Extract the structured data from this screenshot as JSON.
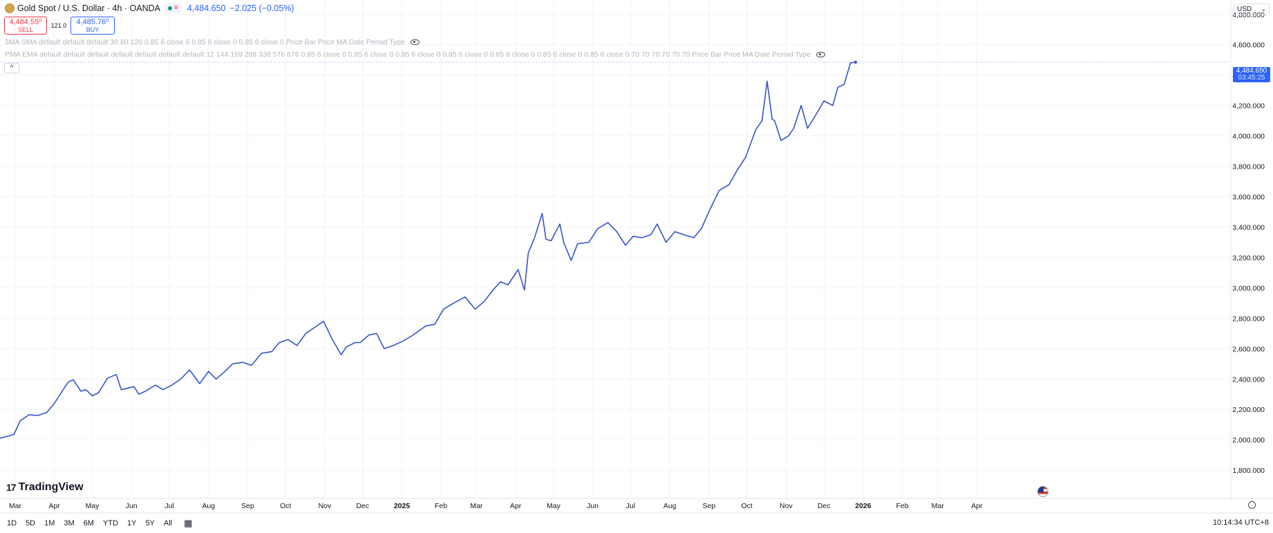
{
  "header": {
    "symbol": "Gold Spot / U.S. Dollar · 4h · OANDA",
    "last_price": "4,484.650",
    "change": "−2.025 (−0.05%)",
    "sell_price": "4,484.55⁰",
    "sell_label": "SELL",
    "spread": "121.0",
    "buy_price": "4,485.76⁰",
    "buy_label": "BUY",
    "indicator1": "3MA SMA default default default 30 60 120 0.85 6 close 0 0.85 6 close 0 0.85 6 close 0 Price Bar Price MA Date Peroid Type",
    "indicator2": "PMA EMA default default default default default default default 12 144 169 288 338 576 676 0.85 6 close 0 0.85 6 close 0 0.85 6 close 0 0.85 6 close 0 0.85 6 close 0 0.85 6 close 0 0.85 6 close 0 70 70 70 70 70 70 Price Bar Price MA Date Peroid Type",
    "collapse_glyph": "^",
    "currency": "USD",
    "currency_chevron": "⌄"
  },
  "price_tag": {
    "price": "4,484.650",
    "countdown": "03:45:25"
  },
  "logo": {
    "mark": "17",
    "text": "TradingView"
  },
  "bottom": {
    "ranges": [
      "1D",
      "5D",
      "1M",
      "3M",
      "6M",
      "YTD",
      "1Y",
      "5Y",
      "All"
    ],
    "time": "10:14:34 UTC+8"
  },
  "icons": {
    "calendar": "calendar-icon",
    "eye": "eye-icon",
    "flag": "us-flag-icon",
    "gear": "gear-icon"
  },
  "colors": {
    "line": "#3652c7",
    "accent": "#2962ff",
    "sell": "#f23645",
    "grid": "#f0f3fa"
  },
  "chart_data": {
    "type": "line",
    "title": "Gold Spot / U.S. Dollar · 4h · OANDA",
    "xlabel": "",
    "ylabel": "",
    "ylim": [
      1700,
      4900
    ],
    "xlim": [
      "2024-02-18",
      "2026-04-28"
    ],
    "grid": true,
    "y_ticks": [
      1800,
      2000,
      2200,
      2400,
      2600,
      2800,
      3000,
      3200,
      3400,
      3600,
      3800,
      4000,
      4200,
      4400,
      4600,
      4800
    ],
    "y_tick_labels": [
      "1,800.000",
      "2,000.000",
      "2,200.000",
      "2,400.000",
      "2,600.000",
      "2,800.000",
      "3,000.000",
      "3,200.000",
      "3,400.000",
      "3,600.000",
      "3,800.000",
      "4,000.000",
      "4,200.000",
      "4,400.000",
      "4,600.000",
      "4,800.000"
    ],
    "x_ticks": [
      {
        "label": "Mar",
        "date": "2024-03-01"
      },
      {
        "label": "Apr",
        "date": "2024-04-01"
      },
      {
        "label": "May",
        "date": "2024-05-01"
      },
      {
        "label": "Jun",
        "date": "2024-06-01"
      },
      {
        "label": "Jul",
        "date": "2024-07-01"
      },
      {
        "label": "Aug",
        "date": "2024-08-01"
      },
      {
        "label": "Sep",
        "date": "2024-09-01"
      },
      {
        "label": "Oct",
        "date": "2024-10-01"
      },
      {
        "label": "Nov",
        "date": "2024-11-01"
      },
      {
        "label": "Dec",
        "date": "2024-12-01"
      },
      {
        "label": "2025",
        "date": "2025-01-01",
        "bold": true
      },
      {
        "label": "Feb",
        "date": "2025-02-01"
      },
      {
        "label": "Mar",
        "date": "2025-03-01"
      },
      {
        "label": "Apr",
        "date": "2025-04-01"
      },
      {
        "label": "May",
        "date": "2025-05-01"
      },
      {
        "label": "Jun",
        "date": "2025-06-01"
      },
      {
        "label": "Jul",
        "date": "2025-07-01"
      },
      {
        "label": "Aug",
        "date": "2025-08-01"
      },
      {
        "label": "Sep",
        "date": "2025-09-01"
      },
      {
        "label": "Oct",
        "date": "2025-10-01"
      },
      {
        "label": "Nov",
        "date": "2025-11-01"
      },
      {
        "label": "Dec",
        "date": "2025-12-01"
      },
      {
        "label": "2026",
        "date": "2026-01-01",
        "bold": true
      },
      {
        "label": "Feb",
        "date": "2026-02-01"
      },
      {
        "label": "Mar",
        "date": "2026-03-01"
      },
      {
        "label": "Apr",
        "date": "2026-04-01"
      }
    ],
    "series": [
      {
        "x": [
          "2024-02-18",
          "2024-02-29",
          "2024-03-05",
          "2024-03-12",
          "2024-03-19",
          "2024-03-26",
          "2024-04-01",
          "2024-04-08",
          "2024-04-12",
          "2024-04-16",
          "2024-04-22",
          "2024-04-26",
          "2024-05-01",
          "2024-05-06",
          "2024-05-13",
          "2024-05-20",
          "2024-05-24",
          "2024-06-03",
          "2024-06-07",
          "2024-06-12",
          "2024-06-20",
          "2024-06-26",
          "2024-07-03",
          "2024-07-10",
          "2024-07-17",
          "2024-07-25",
          "2024-08-01",
          "2024-08-07",
          "2024-08-14",
          "2024-08-20",
          "2024-08-28",
          "2024-09-04",
          "2024-09-12",
          "2024-09-20",
          "2024-09-26",
          "2024-10-03",
          "2024-10-10",
          "2024-10-17",
          "2024-10-24",
          "2024-10-31",
          "2024-11-07",
          "2024-11-14",
          "2024-11-18",
          "2024-11-25",
          "2024-11-29",
          "2024-12-06",
          "2024-12-12",
          "2024-12-18",
          "2024-12-25",
          "2025-01-02",
          "2025-01-10",
          "2025-01-20",
          "2025-01-27",
          "2025-02-03",
          "2025-02-11",
          "2025-02-20",
          "2025-02-28",
          "2025-03-07",
          "2025-03-14",
          "2025-03-20",
          "2025-03-26",
          "2025-04-03",
          "2025-04-08",
          "2025-04-11",
          "2025-04-16",
          "2025-04-22",
          "2025-04-25",
          "2025-04-29",
          "2025-05-06",
          "2025-05-09",
          "2025-05-15",
          "2025-05-20",
          "2025-05-29",
          "2025-06-05",
          "2025-06-13",
          "2025-06-20",
          "2025-06-27",
          "2025-07-03",
          "2025-07-10",
          "2025-07-17",
          "2025-07-22",
          "2025-07-29",
          "2025-08-05",
          "2025-08-12",
          "2025-08-20",
          "2025-08-26",
          "2025-09-02",
          "2025-09-09",
          "2025-09-17",
          "2025-09-23",
          "2025-09-30",
          "2025-10-08",
          "2025-10-13",
          "2025-10-17",
          "2025-10-21",
          "2025-10-23",
          "2025-10-28",
          "2025-11-03",
          "2025-11-07",
          "2025-11-13",
          "2025-11-18",
          "2025-11-24",
          "2025-12-01",
          "2025-12-08",
          "2025-12-12",
          "2025-12-17",
          "2025-12-22",
          "2025-12-26"
        ],
        "y": [
          2010,
          2035,
          2125,
          2165,
          2160,
          2180,
          2240,
          2330,
          2380,
          2395,
          2320,
          2330,
          2290,
          2310,
          2405,
          2430,
          2330,
          2350,
          2300,
          2320,
          2360,
          2330,
          2360,
          2400,
          2460,
          2370,
          2450,
          2400,
          2450,
          2500,
          2510,
          2490,
          2570,
          2580,
          2640,
          2660,
          2620,
          2700,
          2740,
          2780,
          2660,
          2560,
          2610,
          2640,
          2640,
          2690,
          2700,
          2600,
          2620,
          2650,
          2690,
          2750,
          2760,
          2860,
          2900,
          2940,
          2860,
          2910,
          2985,
          3040,
          3020,
          3120,
          2985,
          3230,
          3330,
          3490,
          3320,
          3310,
          3420,
          3300,
          3180,
          3290,
          3300,
          3390,
          3430,
          3370,
          3280,
          3340,
          3330,
          3350,
          3420,
          3300,
          3370,
          3350,
          3330,
          3390,
          3520,
          3640,
          3680,
          3770,
          3860,
          4040,
          4100,
          4360,
          4110,
          4100,
          3970,
          4000,
          4050,
          4200,
          4050,
          4130,
          4230,
          4200,
          4320,
          4340,
          4480,
          4485
        ]
      }
    ]
  }
}
